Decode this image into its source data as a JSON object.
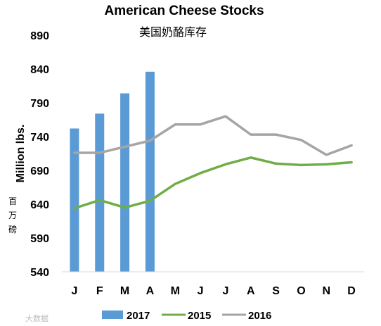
{
  "chart_data": {
    "type": "bar+line",
    "title": "American Cheese Stocks",
    "subtitle": "美国奶酪库存",
    "ylabel": "Million lbs.",
    "ylabel_sub": [
      "百",
      "万",
      "磅"
    ],
    "ylim": [
      540,
      890
    ],
    "yticks": [
      540,
      590,
      640,
      690,
      740,
      790,
      840,
      890
    ],
    "categories": [
      "J",
      "F",
      "M",
      "A",
      "M",
      "J",
      "J",
      "A",
      "S",
      "O",
      "N",
      "D"
    ],
    "series": [
      {
        "name": "2017",
        "kind": "bar",
        "color": "#5b9bd5",
        "values": [
          752,
          774,
          804,
          836,
          null,
          null,
          null,
          null,
          null,
          null,
          null,
          null
        ]
      },
      {
        "name": "2015",
        "kind": "line",
        "color": "#70ad47",
        "values": [
          634,
          646,
          635,
          645,
          670,
          686,
          699,
          709,
          700,
          698,
          699,
          702
        ]
      },
      {
        "name": "2016",
        "kind": "line",
        "color": "#a5a5a5",
        "values": [
          716,
          716,
          725,
          734,
          758,
          758,
          770,
          743,
          743,
          735,
          713,
          727
        ]
      }
    ],
    "legend_position": "bottom",
    "grid": false
  },
  "watermark": "大数据"
}
